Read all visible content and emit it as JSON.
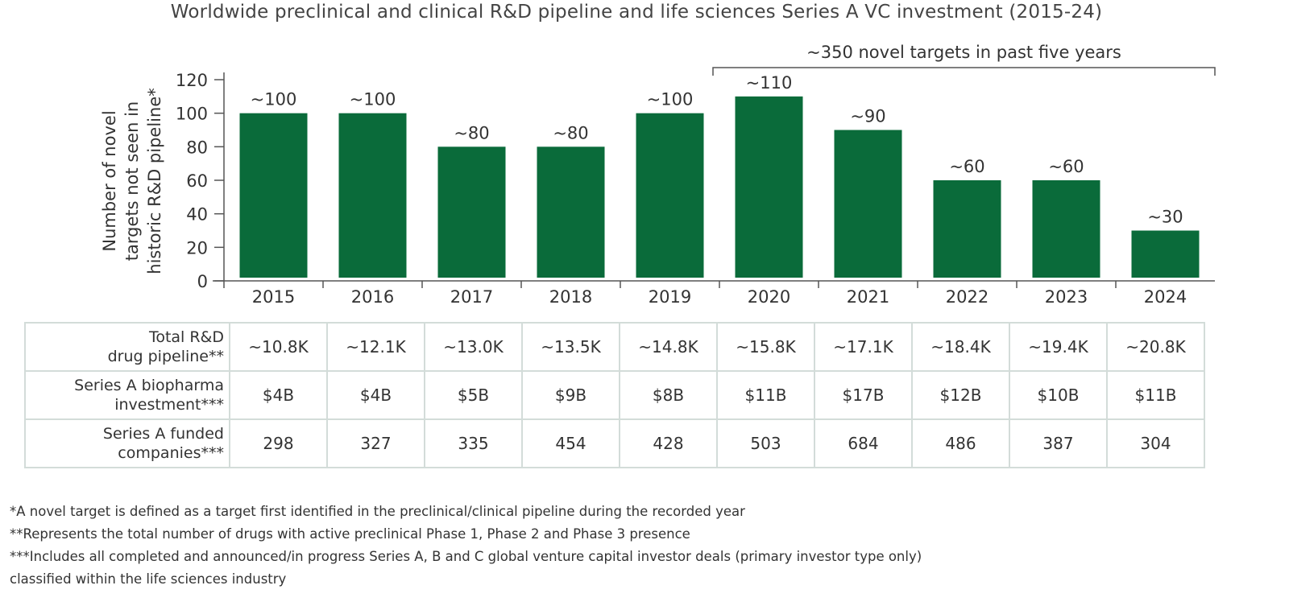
{
  "chart_data": {
    "type": "bar",
    "title": "Worldwide preclinical and clinical R&D pipeline and life sciences Series A VC investment (2015-24)",
    "ylabel_lines": [
      "Number of novel",
      "targets not seen in",
      "historic R&D pipeline*"
    ],
    "xlabel": "",
    "ylim": [
      0,
      120
    ],
    "yticks": [
      0,
      20,
      40,
      60,
      80,
      100,
      120
    ],
    "categories": [
      "2015",
      "2016",
      "2017",
      "2018",
      "2019",
      "2020",
      "2021",
      "2022",
      "2023",
      "2024"
    ],
    "values": [
      100,
      100,
      80,
      80,
      100,
      110,
      90,
      60,
      60,
      30
    ],
    "data_labels": [
      "~100",
      "~100",
      "~80",
      "~80",
      "~100",
      "~110",
      "~90",
      "~60",
      "~60",
      "~30"
    ],
    "bar_color": "#0a6b3a",
    "annotation": {
      "text": "~350 novel targets in past five years",
      "from": "2020",
      "to": "2024"
    }
  },
  "table": {
    "rows": [
      {
        "label_lines": [
          "Total R&D",
          "drug pipeline**"
        ],
        "values": [
          "~10.8K",
          "~12.1K",
          "~13.0K",
          "~13.5K",
          "~14.8K",
          "~15.8K",
          "~17.1K",
          "~18.4K",
          "~19.4K",
          "~20.8K"
        ]
      },
      {
        "label_lines": [
          "Series A biopharma",
          "investment***"
        ],
        "values": [
          "$4B",
          "$4B",
          "$5B",
          "$9B",
          "$8B",
          "$11B",
          "$17B",
          "$12B",
          "$10B",
          "$11B"
        ]
      },
      {
        "label_lines": [
          "Series A funded",
          "companies***"
        ],
        "values": [
          "298",
          "327",
          "335",
          "454",
          "428",
          "503",
          "684",
          "486",
          "387",
          "304"
        ]
      }
    ]
  },
  "footnotes": [
    "*A novel target is defined as a target first identified in the preclinical/clinical pipeline during the recorded year",
    "**Represents the total number of drugs with active preclinical Phase 1, Phase 2 and Phase 3 presence",
    "***Includes all completed and announced/in progress Series A, B and C global venture capital investor deals (primary investor type only)",
    "classified within the life sciences industry"
  ]
}
